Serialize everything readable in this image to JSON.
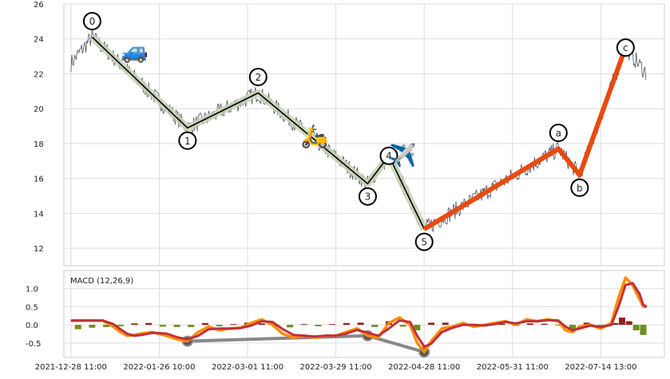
{
  "chart_data": [
    {
      "type": "line",
      "panel": "price",
      "ylim": [
        11,
        26
      ],
      "yticks": [
        12,
        14,
        16,
        18,
        20,
        22,
        24,
        26
      ],
      "grid": true,
      "wave_points": [
        {
          "label": "0",
          "x": 6,
          "y": 24.1
        },
        {
          "label": "1",
          "x": 33,
          "y": 18.9
        },
        {
          "label": "2",
          "x": 53,
          "y": 20.9
        },
        {
          "label": "3",
          "x": 84,
          "y": 15.7
        },
        {
          "label": "4",
          "x": 90,
          "y": 17.3
        },
        {
          "label": "5",
          "x": 100,
          "y": 13.1
        },
        {
          "label": "a",
          "x": 138,
          "y": 17.7
        },
        {
          "label": "b",
          "x": 144,
          "y": 16.2
        },
        {
          "label": "c",
          "x": 157,
          "y": 23.5
        }
      ],
      "colors": {
        "impulse": "#000000",
        "impulse_band": "#c8d2b4",
        "correction": "#e84a10",
        "price": "#4a5060"
      },
      "emoji_markers": [
        {
          "symbol": "🚙",
          "x": 18,
          "y": 23.3
        },
        {
          "symbol": "🛵",
          "x": 69,
          "y": 18.4
        },
        {
          "symbol": "✈️",
          "x": 94,
          "y": 17.3
        }
      ]
    },
    {
      "type": "line",
      "panel": "macd",
      "title": "MACD (12,26,9)",
      "ylim": [
        -0.9,
        1.5
      ],
      "yticks": [
        -0.5,
        0.0,
        0.5,
        1.0
      ],
      "grid": true,
      "x_tick_labels": [
        {
          "x": 0,
          "label": "2021-12-28 11:00"
        },
        {
          "x": 25,
          "label": "2022-01-26 10:00"
        },
        {
          "x": 50,
          "label": "2022-03-01 11:00"
        },
        {
          "x": 75,
          "label": "2022-03-29 11:00"
        },
        {
          "x": 100,
          "label": "2022-04-28 11:00"
        },
        {
          "x": 125,
          "label": "2022-05-31 11:00"
        },
        {
          "x": 150,
          "label": "2022-07-14 13:00"
        }
      ],
      "xlim": [
        -2,
        168
      ],
      "macd_x": [
        0,
        4,
        8,
        9,
        12,
        14,
        16,
        18,
        20,
        23,
        27,
        30,
        33,
        36,
        39,
        42,
        45,
        48,
        51,
        54,
        57,
        60,
        63,
        66,
        69,
        72,
        75,
        78,
        81,
        84,
        87,
        90,
        93,
        96,
        98,
        100,
        102,
        105,
        108,
        111,
        114,
        117,
        120,
        123,
        126,
        129,
        132,
        135,
        138,
        140,
        142,
        144,
        147,
        150,
        153,
        155,
        157,
        159,
        161,
        162,
        163
      ],
      "macd": [
        0.12,
        0.12,
        0.12,
        0.12,
        -0.05,
        -0.2,
        -0.3,
        -0.28,
        -0.24,
        -0.2,
        -0.3,
        -0.4,
        -0.45,
        -0.2,
        -0.05,
        -0.15,
        -0.1,
        -0.08,
        0.05,
        0.15,
        0.0,
        -0.25,
        -0.35,
        -0.3,
        -0.35,
        -0.3,
        -0.3,
        -0.2,
        -0.1,
        -0.3,
        -0.35,
        0.05,
        0.2,
        0.0,
        -0.5,
        -0.75,
        -0.45,
        -0.1,
        -0.05,
        0.05,
        -0.05,
        0.0,
        0.05,
        0.1,
        0.0,
        0.15,
        0.1,
        0.15,
        0.1,
        -0.15,
        -0.2,
        -0.05,
        0.0,
        -0.1,
        0.05,
        0.75,
        1.3,
        1.1,
        0.7,
        0.5,
        0.5
      ],
      "signal": [
        0.12,
        0.12,
        0.12,
        0.12,
        0.02,
        -0.12,
        -0.25,
        -0.3,
        -0.28,
        -0.22,
        -0.24,
        -0.34,
        -0.4,
        -0.3,
        -0.12,
        -0.1,
        -0.1,
        -0.09,
        -0.02,
        0.1,
        0.08,
        -0.12,
        -0.28,
        -0.3,
        -0.32,
        -0.3,
        -0.3,
        -0.24,
        -0.14,
        -0.22,
        -0.3,
        -0.1,
        0.12,
        0.08,
        -0.3,
        -0.6,
        -0.52,
        -0.2,
        -0.08,
        0.0,
        0.0,
        -0.02,
        0.02,
        0.08,
        0.04,
        0.1,
        0.1,
        0.13,
        0.12,
        -0.05,
        -0.15,
        -0.1,
        -0.02,
        -0.06,
        0.0,
        0.5,
        1.1,
        1.15,
        0.85,
        0.55,
        0.5
      ],
      "histogram_x": [
        2,
        6,
        10,
        14,
        18,
        22,
        26,
        30,
        34,
        38,
        42,
        46,
        50,
        54,
        58,
        62,
        66,
        70,
        74,
        78,
        82,
        86,
        90,
        94,
        98,
        102,
        106,
        110,
        114,
        118,
        122,
        126,
        130,
        134,
        138,
        142,
        146,
        150,
        154,
        156,
        158,
        160,
        162
      ],
      "histogram": [
        -0.12,
        -0.08,
        -0.06,
        -0.04,
        0.04,
        0.05,
        -0.05,
        -0.06,
        -0.06,
        0.05,
        -0.04,
        0.02,
        0.06,
        0.04,
        -0.06,
        -0.07,
        0.02,
        -0.04,
        0.02,
        0.05,
        0.06,
        -0.06,
        0.1,
        -0.05,
        -0.15,
        0.06,
        0.06,
        0.03,
        -0.03,
        0.03,
        0.03,
        -0.03,
        0.04,
        0.03,
        -0.02,
        -0.12,
        0.06,
        -0.04,
        0.05,
        0.2,
        0.1,
        -0.15,
        -0.28
      ],
      "divergence_points": [
        {
          "x": 33,
          "y": -0.45
        },
        {
          "x": 84,
          "y": -0.3
        },
        {
          "x": 100,
          "y": -0.75
        }
      ],
      "colors": {
        "macd": "#ff8c00",
        "signal": "#c0303a",
        "hist_pos": "#9b1c1c",
        "hist_neg": "#6b8e23",
        "divergence": "#888888"
      }
    }
  ]
}
